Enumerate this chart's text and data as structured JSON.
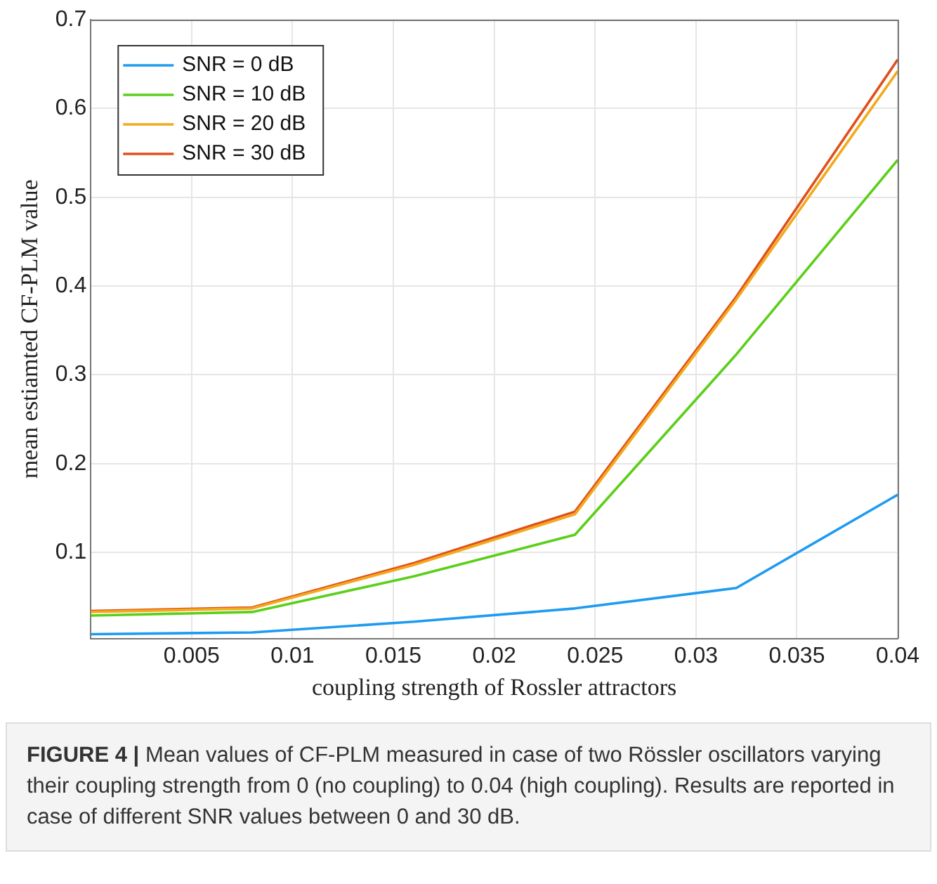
{
  "chart_data": {
    "type": "line",
    "xlabel": "coupling strength of Rossler attractors",
    "ylabel": "mean estiamted CF-PLM value",
    "x": [
      0,
      0.008,
      0.016,
      0.024,
      0.032,
      0.04
    ],
    "series": [
      {
        "name": "SNR = 0 dB",
        "color": "#1e9bf0",
        "values": [
          0.008,
          0.01,
          0.022,
          0.037,
          0.06,
          0.165
        ]
      },
      {
        "name": "SNR = 10 dB",
        "color": "#5ccf1a",
        "values": [
          0.029,
          0.033,
          0.073,
          0.12,
          0.323,
          0.542
        ]
      },
      {
        "name": "SNR = 20 dB",
        "color": "#f2a91c",
        "values": [
          0.033,
          0.037,
          0.086,
          0.143,
          0.385,
          0.642
        ]
      },
      {
        "name": "SNR = 30 dB",
        "color": "#e0501c",
        "values": [
          0.034,
          0.038,
          0.088,
          0.146,
          0.388,
          0.655
        ]
      }
    ],
    "xlim": [
      0,
      0.04
    ],
    "xticks": [
      0.005,
      0.01,
      0.015,
      0.02,
      0.025,
      0.03,
      0.035,
      0.04
    ],
    "ylim": [
      0.003,
      0.7
    ],
    "yticks": [
      0.1,
      0.2,
      0.3,
      0.4,
      0.5,
      0.6,
      0.7
    ],
    "grid": true,
    "legend": "top left",
    "marker": "none",
    "line_style": "solid",
    "annotations": [
      "FIGURE 4 | Mean values of CF-PLM measured in case of two Rössler oscillators varying their coupling strength from 0 (no coupling) to 0.04 (high coupling). Results are reported in case of different SNR values between 0 and 30 dB."
    ]
  }
}
